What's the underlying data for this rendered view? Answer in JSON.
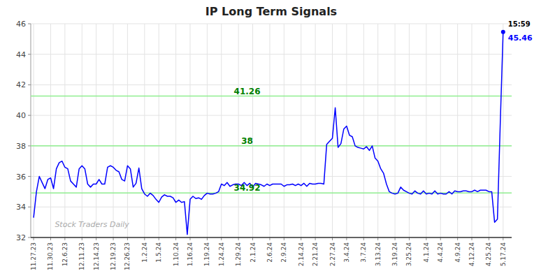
{
  "chart_data": {
    "type": "line",
    "title": "IP Long Term Signals",
    "grid": true,
    "watermark": "Stock Traders Daily",
    "categories": [
      "11.27.23",
      null,
      null,
      null,
      null,
      null,
      "11.30.23",
      null,
      null,
      null,
      null,
      "12.6.23",
      null,
      null,
      null,
      null,
      null,
      "12.11.23",
      null,
      null,
      null,
      null,
      "12.14.23",
      null,
      null,
      null,
      null,
      null,
      "12.19.23",
      null,
      null,
      null,
      null,
      "12.26.23",
      null,
      null,
      null,
      null,
      null,
      "1.2.24",
      null,
      null,
      null,
      null,
      "1.5.24",
      null,
      null,
      null,
      null,
      null,
      "1.10.24",
      null,
      null,
      null,
      null,
      "1.16.24",
      null,
      null,
      null,
      null,
      null,
      "1.19.24",
      null,
      null,
      null,
      null,
      "1.24.24",
      null,
      null,
      null,
      null,
      null,
      "1.29.24",
      null,
      null,
      null,
      null,
      "2.1.24",
      null,
      null,
      null,
      null,
      null,
      "2.6.24",
      null,
      null,
      null,
      null,
      "2.9.24",
      null,
      null,
      null,
      null,
      null,
      "2.14.24",
      null,
      null,
      null,
      null,
      "2.21.24",
      null,
      null,
      null,
      null,
      null,
      "2.27.24",
      null,
      null,
      null,
      null,
      "3.4.24",
      null,
      null,
      null,
      null,
      null,
      "3.7.24",
      null,
      null,
      null,
      null,
      "3.13.24",
      null,
      null,
      null,
      null,
      null,
      "3.19.24",
      null,
      null,
      null,
      null,
      "3.25.24",
      null,
      null,
      null,
      null,
      null,
      "4.1.24",
      null,
      null,
      null,
      null,
      "4.4.24",
      null,
      null,
      null,
      null,
      null,
      "4.9.24",
      null,
      null,
      null,
      null,
      "4.12.24",
      null,
      null,
      null,
      null,
      null,
      "4.25.24",
      null,
      null,
      null,
      null,
      "5.17.24"
    ],
    "series": [
      {
        "color": "blue",
        "values": [
          33.3,
          35.0,
          36.0,
          35.6,
          35.2,
          35.8,
          35.9,
          35.2,
          36.5,
          36.9,
          37.0,
          36.6,
          36.5,
          35.7,
          35.5,
          35.3,
          36.5,
          36.7,
          36.5,
          35.5,
          35.3,
          35.5,
          35.5,
          35.8,
          35.5,
          35.5,
          36.6,
          36.7,
          36.6,
          36.4,
          36.3,
          35.8,
          35.7,
          36.7,
          36.5,
          35.3,
          35.55,
          36.55,
          35.2,
          34.85,
          34.7,
          34.9,
          34.75,
          34.5,
          34.3,
          34.65,
          34.8,
          34.7,
          34.7,
          34.6,
          34.3,
          34.45,
          34.3,
          34.35,
          32.2,
          34.5,
          34.7,
          34.55,
          34.6,
          34.5,
          34.75,
          34.9,
          34.85,
          34.85,
          34.9,
          35.0,
          35.5,
          35.4,
          35.6,
          35.35,
          35.45,
          35.5,
          35.5,
          35.4,
          35.6,
          35.4,
          35.55,
          35.3,
          35.55,
          35.5,
          35.45,
          35.35,
          35.5,
          35.4,
          35.5,
          35.5,
          35.5,
          35.5,
          35.35,
          35.45,
          35.45,
          35.5,
          35.4,
          35.5,
          35.4,
          35.55,
          35.35,
          35.55,
          35.5,
          35.5,
          35.55,
          35.55,
          35.5,
          38.1,
          38.3,
          38.5,
          40.5,
          37.9,
          38.15,
          39.1,
          39.3,
          38.7,
          38.6,
          38.0,
          37.9,
          37.85,
          37.8,
          37.95,
          37.7,
          38.0,
          37.2,
          37.0,
          36.5,
          36.2,
          35.5,
          35.0,
          34.9,
          34.85,
          34.9,
          35.3,
          35.1,
          35.0,
          34.9,
          34.85,
          35.05,
          34.9,
          34.85,
          35.05,
          34.85,
          34.9,
          34.85,
          35.05,
          34.85,
          34.9,
          34.85,
          34.85,
          35.0,
          34.85,
          35.05,
          35.0,
          35.0,
          35.05,
          35.05,
          35.0,
          35.0,
          35.1,
          35.0,
          35.1,
          35.1,
          35.1,
          35.0,
          35.0,
          33.0,
          33.2,
          39.5,
          45.46
        ]
      }
    ],
    "hlines": [
      {
        "value": 41.26,
        "label": "41.26",
        "color": "#90ee90"
      },
      {
        "value": 38.0,
        "label": "38",
        "color": "#90ee90"
      },
      {
        "value": 34.92,
        "label": "34.92",
        "color": "#90ee90"
      }
    ],
    "annotations": [
      {
        "text": "15:59",
        "color": "black"
      },
      {
        "text": "45.46",
        "color": "blue"
      }
    ],
    "ylim": [
      32,
      46
    ],
    "yticks": [
      32,
      34,
      36,
      38,
      40,
      42,
      44,
      46
    ]
  }
}
